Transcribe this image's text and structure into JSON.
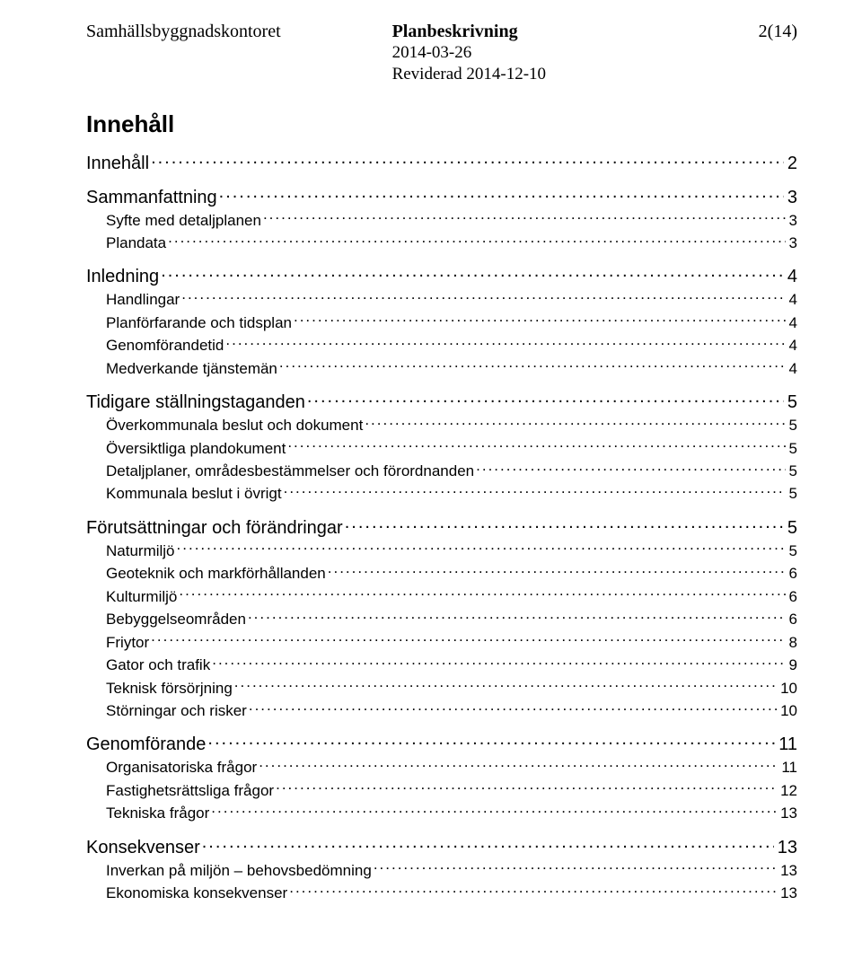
{
  "header": {
    "left": "Samhällsbyggnadskontoret",
    "center_title": "Planbeskrivning",
    "center_line1": "2014-03-26",
    "center_line2": "Reviderad 2014-12-10",
    "page_indicator": "2(14)"
  },
  "toc_heading": "Innehåll",
  "toc": [
    {
      "level": 1,
      "label": "Innehåll",
      "page": "2"
    },
    {
      "level": 1,
      "label": "Sammanfattning",
      "page": "3"
    },
    {
      "level": 2,
      "label": "Syfte med detaljplanen",
      "page": "3"
    },
    {
      "level": 2,
      "label": "Plandata",
      "page": "3"
    },
    {
      "level": 1,
      "label": "Inledning",
      "page": "4"
    },
    {
      "level": 2,
      "label": "Handlingar",
      "page": "4"
    },
    {
      "level": 2,
      "label": "Planförfarande och tidsplan",
      "page": "4"
    },
    {
      "level": 2,
      "label": "Genomförandetid",
      "page": "4"
    },
    {
      "level": 2,
      "label": "Medverkande tjänstemän",
      "page": "4"
    },
    {
      "level": 1,
      "label": "Tidigare ställningstaganden",
      "page": "5"
    },
    {
      "level": 2,
      "label": "Överkommunala beslut och dokument",
      "page": "5"
    },
    {
      "level": 2,
      "label": "Översiktliga plandokument",
      "page": "5"
    },
    {
      "level": 2,
      "label": "Detaljplaner, områdesbestämmelser och förordnanden",
      "page": "5"
    },
    {
      "level": 2,
      "label": "Kommunala beslut i övrigt",
      "page": "5"
    },
    {
      "level": 1,
      "label": "Förutsättningar och förändringar",
      "page": "5"
    },
    {
      "level": 2,
      "label": "Naturmiljö",
      "page": "5"
    },
    {
      "level": 2,
      "label": "Geoteknik och markförhållanden",
      "page": "6"
    },
    {
      "level": 2,
      "label": "Kulturmiljö",
      "page": "6"
    },
    {
      "level": 2,
      "label": "Bebyggelseområden",
      "page": "6"
    },
    {
      "level": 2,
      "label": "Friytor",
      "page": "8"
    },
    {
      "level": 2,
      "label": "Gator och trafik",
      "page": "9"
    },
    {
      "level": 2,
      "label": "Teknisk försörjning",
      "page": "10"
    },
    {
      "level": 2,
      "label": "Störningar och risker",
      "page": "10"
    },
    {
      "level": 1,
      "label": "Genomförande",
      "page": "11"
    },
    {
      "level": 2,
      "label": "Organisatoriska frågor",
      "page": "11"
    },
    {
      "level": 2,
      "label": "Fastighetsrättsliga frågor",
      "page": "12"
    },
    {
      "level": 2,
      "label": "Tekniska frågor",
      "page": "13"
    },
    {
      "level": 1,
      "label": "Konsekvenser",
      "page": "13"
    },
    {
      "level": 2,
      "label": "Inverkan på miljön – behovsbedömning",
      "page": "13"
    },
    {
      "level": 2,
      "label": "Ekonomiska konsekvenser",
      "page": "13"
    }
  ]
}
